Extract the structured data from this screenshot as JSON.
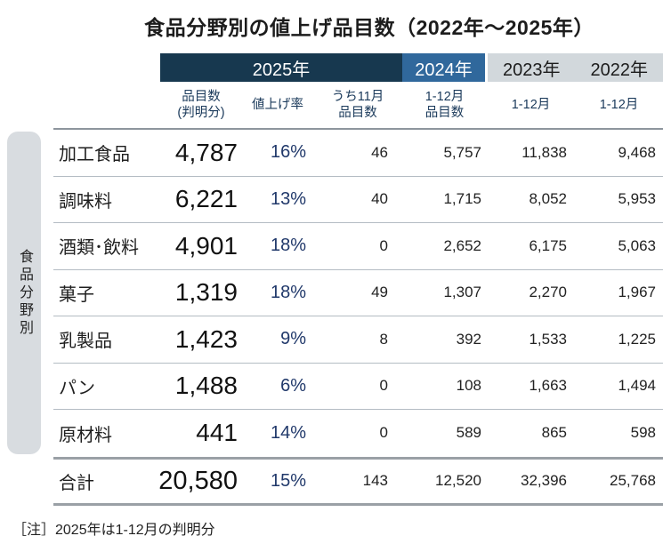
{
  "title": "食品分野別の値上げ品目数（2022年～2025年）",
  "side_label": "食品分野別",
  "note": "［注］2025年は1-12月の判明分",
  "header": {
    "y2025": "2025年",
    "y2024": "2024年",
    "y2023": "2023年",
    "y2022": "2022年"
  },
  "subheader": {
    "count": "品目数\n(判明分)",
    "rate": "値上げ率",
    "nov": "うち11月\n品目数",
    "m2024": "1-12月\n品目数",
    "m2023": "1-12月",
    "m2022": "1-12月"
  },
  "rows": [
    {
      "category": "加工食品",
      "count": "4,787",
      "rate": "16%",
      "nov": "46",
      "y2024": "5,757",
      "y2023": "11,838",
      "y2022": "9,468"
    },
    {
      "category": "調味料",
      "count": "6,221",
      "rate": "13%",
      "nov": "40",
      "y2024": "1,715",
      "y2023": "8,052",
      "y2022": "5,953"
    },
    {
      "category": "酒類･飲料",
      "count": "4,901",
      "rate": "18%",
      "nov": "0",
      "y2024": "2,652",
      "y2023": "6,175",
      "y2022": "5,063"
    },
    {
      "category": "菓子",
      "count": "1,319",
      "rate": "18%",
      "nov": "49",
      "y2024": "1,307",
      "y2023": "2,270",
      "y2022": "1,967"
    },
    {
      "category": "乳製品",
      "count": "1,423",
      "rate": "9%",
      "nov": "8",
      "y2024": "392",
      "y2023": "1,533",
      "y2022": "1,225"
    },
    {
      "category": "パン",
      "count": "1,488",
      "rate": "6%",
      "nov": "0",
      "y2024": "108",
      "y2023": "1,663",
      "y2022": "1,494"
    },
    {
      "category": "原材料",
      "count": "441",
      "rate": "14%",
      "nov": "0",
      "y2024": "589",
      "y2023": "865",
      "y2022": "598"
    }
  ],
  "total": {
    "category": "合計",
    "count": "20,580",
    "rate": "15%",
    "nov": "143",
    "y2024": "12,520",
    "y2023": "32,396",
    "y2022": "25,768"
  },
  "colors": {
    "header_2025_bg": "#17384f",
    "header_2024_bg": "#30689c",
    "header_old_bg": "#d2d8dc",
    "subheader_text": "#1a395a",
    "rate_text": "#20386a",
    "sidebar_bg": "#d8dce0",
    "thick_rule": "#9aa0a6",
    "thin_rule": "#b4bcc3"
  },
  "chart_data": {
    "type": "table",
    "title": "食品分野別の値上げ品目数（2022年～2025年）",
    "columns": [
      "食品分野",
      "2025年 品目数(判明分)",
      "2025年 値上げ率",
      "2025年 うち11月品目数",
      "2024年 1-12月品目数",
      "2023年 1-12月",
      "2022年 1-12月"
    ],
    "rows": [
      [
        "加工食品",
        4787,
        "16%",
        46,
        5757,
        11838,
        9468
      ],
      [
        "調味料",
        6221,
        "13%",
        40,
        1715,
        8052,
        5953
      ],
      [
        "酒類･飲料",
        4901,
        "18%",
        0,
        2652,
        6175,
        5063
      ],
      [
        "菓子",
        1319,
        "18%",
        49,
        1307,
        2270,
        1967
      ],
      [
        "乳製品",
        1423,
        "9%",
        8,
        392,
        1533,
        1225
      ],
      [
        "パン",
        1488,
        "6%",
        0,
        108,
        1663,
        1494
      ],
      [
        "原材料",
        441,
        "14%",
        0,
        589,
        865,
        598
      ]
    ],
    "total_row": [
      "合計",
      20580,
      "15%",
      143,
      12520,
      32396,
      25768
    ],
    "note": "2025年は1-12月の判明分"
  }
}
